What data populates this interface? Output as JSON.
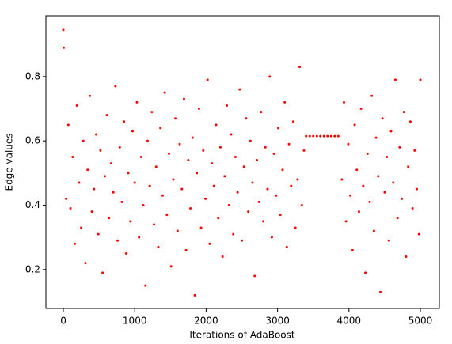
{
  "chart_data": {
    "type": "scatter",
    "x_label": "Iterations of AdaBoost",
    "y_label": "Edge values",
    "xlim": [
      -244,
      5266
    ],
    "ylim": [
      0.079,
      0.989
    ],
    "xticks": [
      0,
      1000,
      2000,
      3000,
      4000,
      5000
    ],
    "yticks": [
      0.2,
      0.4,
      0.6,
      0.8
    ],
    "series": [
      {
        "color": "#ff0000",
        "x": [
          0,
          5,
          40,
          70,
          100,
          130,
          160,
          190,
          220,
          250,
          280,
          310,
          340,
          370,
          400,
          430,
          460,
          490,
          520,
          550,
          580,
          610,
          640,
          670,
          700,
          730,
          760,
          790,
          820,
          850,
          880,
          910,
          940,
          970,
          1000,
          1030,
          1060,
          1090,
          1120,
          1150,
          1180,
          1210,
          1240,
          1270,
          1300,
          1330,
          1360,
          1390,
          1420,
          1450,
          1480,
          1510,
          1540,
          1570,
          1600,
          1630,
          1660,
          1690,
          1720,
          1750,
          1780,
          1810,
          1840,
          1870,
          1900,
          1930,
          1960,
          1990,
          2020,
          2050,
          2080,
          2110,
          2140,
          2170,
          2200,
          2230,
          2260,
          2290,
          2320,
          2350,
          2380,
          2410,
          2440,
          2470,
          2500,
          2530,
          2560,
          2590,
          2620,
          2650,
          2680,
          2710,
          2740,
          2770,
          2800,
          2830,
          2860,
          2890,
          2920,
          2950,
          2980,
          3010,
          3040,
          3070,
          3100,
          3130,
          3160,
          3190,
          3220,
          3250,
          3280,
          3310,
          3340,
          3370,
          3400,
          3450,
          3500,
          3550,
          3600,
          3650,
          3700,
          3750,
          3800,
          3850,
          3900,
          3930,
          3960,
          3990,
          4020,
          4050,
          4080,
          4110,
          4140,
          4170,
          4200,
          4230,
          4260,
          4290,
          4320,
          4350,
          4380,
          4410,
          4440,
          4470,
          4500,
          4530,
          4560,
          4590,
          4620,
          4650,
          4680,
          4710,
          4740,
          4770,
          4800,
          4830,
          4860,
          4890,
          4920,
          4950,
          4980,
          5000
        ],
        "values": [
          0.945,
          0.89,
          0.42,
          0.65,
          0.39,
          0.55,
          0.28,
          0.71,
          0.47,
          0.33,
          0.6,
          0.22,
          0.51,
          0.74,
          0.38,
          0.45,
          0.62,
          0.31,
          0.57,
          0.19,
          0.49,
          0.68,
          0.36,
          0.53,
          0.44,
          0.77,
          0.29,
          0.58,
          0.41,
          0.66,
          0.25,
          0.5,
          0.35,
          0.63,
          0.47,
          0.72,
          0.3,
          0.55,
          0.4,
          0.15,
          0.6,
          0.46,
          0.69,
          0.34,
          0.52,
          0.27,
          0.64,
          0.43,
          0.75,
          0.37,
          0.56,
          0.21,
          0.48,
          0.67,
          0.32,
          0.59,
          0.45,
          0.73,
          0.26,
          0.54,
          0.39,
          0.61,
          0.12,
          0.5,
          0.7,
          0.33,
          0.57,
          0.42,
          0.79,
          0.28,
          0.53,
          0.46,
          0.65,
          0.36,
          0.58,
          0.24,
          0.49,
          0.71,
          0.4,
          0.62,
          0.31,
          0.55,
          0.44,
          0.76,
          0.29,
          0.52,
          0.67,
          0.38,
          0.6,
          0.47,
          0.18,
          0.54,
          0.41,
          0.69,
          0.35,
          0.58,
          0.45,
          0.8,
          0.3,
          0.56,
          0.43,
          0.64,
          0.37,
          0.51,
          0.72,
          0.27,
          0.59,
          0.46,
          0.66,
          0.33,
          0.48,
          0.83,
          0.4,
          0.57,
          0.615,
          0.615,
          0.615,
          0.615,
          0.615,
          0.615,
          0.615,
          0.615,
          0.615,
          0.615,
          0.48,
          0.72,
          0.35,
          0.59,
          0.43,
          0.26,
          0.65,
          0.51,
          0.38,
          0.7,
          0.46,
          0.19,
          0.56,
          0.41,
          0.74,
          0.32,
          0.61,
          0.49,
          0.13,
          0.67,
          0.44,
          0.55,
          0.29,
          0.63,
          0.47,
          0.79,
          0.36,
          0.58,
          0.42,
          0.69,
          0.24,
          0.52,
          0.66,
          0.39,
          0.57,
          0.45,
          0.31,
          0.79
        ]
      }
    ]
  }
}
